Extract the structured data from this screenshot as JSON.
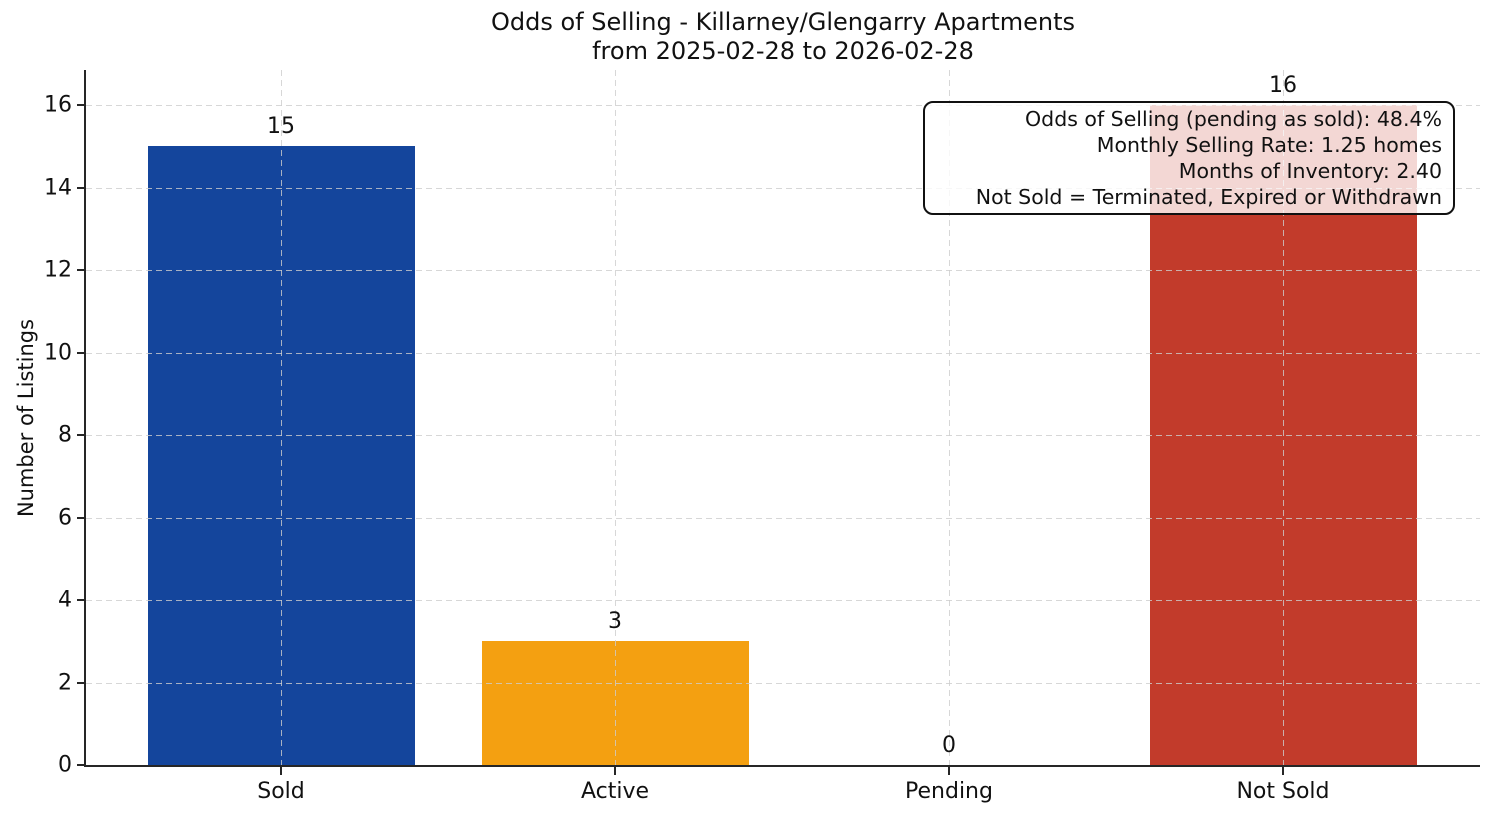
{
  "chart_data": {
    "type": "bar",
    "title": "Odds of Selling - Killarney/Glengarry Apartments\nfrom 2025-02-28 to 2026-02-28",
    "title_lines": [
      "Odds of Selling - Killarney/Glengarry Apartments",
      "from 2025-02-28 to 2026-02-28"
    ],
    "categories": [
      "Sold",
      "Active",
      "Pending",
      "Not Sold"
    ],
    "values": [
      15,
      3,
      0,
      16
    ],
    "value_labels": [
      "15",
      "3",
      "0",
      "16"
    ],
    "bar_colors": [
      "#14459c",
      "#f4a011",
      null,
      "#c23b2b"
    ],
    "xlabel": "",
    "ylabel": "Number of Listings",
    "yticks": [
      0,
      2,
      4,
      6,
      8,
      10,
      12,
      14,
      16
    ],
    "ylim": [
      0,
      16.85
    ],
    "grid": {
      "style": "dashed",
      "axes": "both",
      "above_bars": true
    },
    "legend": null,
    "annotation_lines": [
      "Odds of Selling (pending as sold): 48.4%",
      "Monthly Selling Rate: 1.25 homes",
      "Months of Inventory: 2.40",
      "Not Sold = Terminated, Expired or Withdrawn"
    ],
    "colors": {
      "sold_bar": "#14459c",
      "active_bar": "#f4a011",
      "not_sold_bar": "#c23b2b",
      "axis": "#262626",
      "text": "#111111"
    }
  }
}
